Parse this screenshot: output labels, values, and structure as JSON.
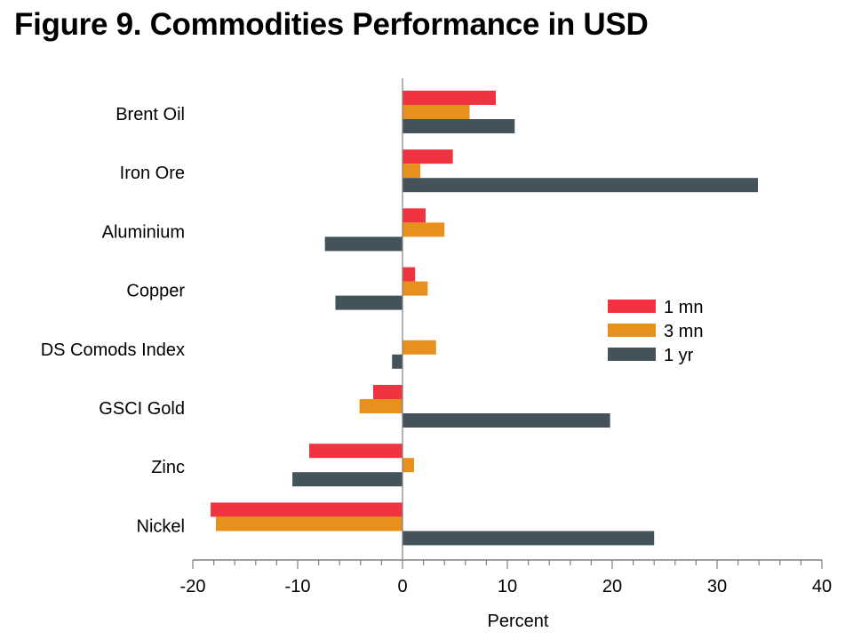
{
  "title": "Figure 9. Commodities Performance in USD",
  "chart_data": {
    "type": "bar",
    "orientation": "horizontal",
    "title": "Figure 9. Commodities Performance in USD",
    "xlabel": "Percent",
    "ylabel": "",
    "xlim": [
      -20,
      40
    ],
    "xticks": [
      -20,
      -10,
      0,
      10,
      20,
      30,
      40
    ],
    "minor_tick_step": 2,
    "grid": false,
    "legend_position": "center-right",
    "categories": [
      "Brent Oil",
      "Iron Ore",
      "Aluminium",
      "Copper",
      "DS Comods Index",
      "GSCI Gold",
      "Zinc",
      "Nickel"
    ],
    "series": [
      {
        "name": "1 mn",
        "color": "#ef3340",
        "values": [
          8.9,
          4.8,
          2.2,
          1.2,
          0.0,
          -2.8,
          -8.9,
          -18.3
        ]
      },
      {
        "name": "3 mn",
        "color": "#e8901e",
        "values": [
          6.4,
          1.7,
          4.0,
          2.4,
          3.2,
          -4.1,
          1.1,
          -17.8
        ]
      },
      {
        "name": "1 yr",
        "color": "#44525c",
        "values": [
          10.7,
          33.9,
          -7.4,
          -6.4,
          -1.0,
          19.8,
          -10.5,
          24.0
        ]
      }
    ]
  }
}
